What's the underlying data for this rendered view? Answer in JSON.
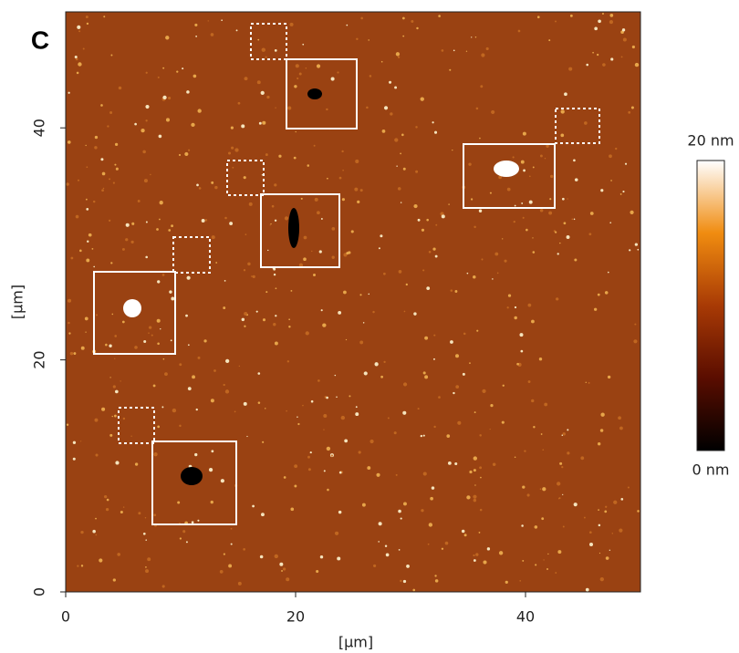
{
  "chart_data": {
    "type": "image",
    "panel_label": "C",
    "xlabel": "[µm]",
    "ylabel": "[µm]",
    "xlim": [
      0,
      50
    ],
    "ylim": [
      0,
      50
    ],
    "xticks": [
      0,
      20,
      40
    ],
    "yticks": [
      0,
      20,
      40
    ],
    "colorbar": {
      "clim": [
        0,
        20
      ],
      "ticks": [
        {
          "value": 20,
          "label": "20 nm"
        },
        {
          "value": 0,
          "label": "0 nm"
        }
      ],
      "colors": [
        "#000000",
        "#5a0d00",
        "#a83a05",
        "#f08c10",
        "#ffffff"
      ]
    },
    "background_color": "#9a4212"
  }
}
